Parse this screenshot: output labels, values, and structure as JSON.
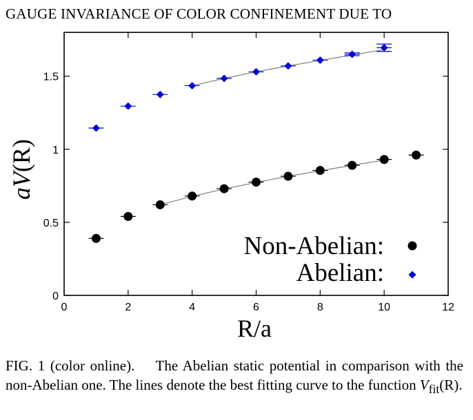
{
  "running_head": "GAUGE INVARIANCE OF COLOR CONFINEMENT DUE TO",
  "caption": {
    "prefix": "FIG. 1 (color online).",
    "text": "The Abelian static potential in comparison with the non-Abelian one. The lines denote the best fitting curve to the function",
    "function_name": "V",
    "function_sub": "fit",
    "function_arg": "(R)."
  },
  "chart_data": {
    "type": "scatter",
    "xlabel": "R/a",
    "ylabel_italic": "aV",
    "ylabel_rest": "(R)",
    "xlim": [
      0,
      12
    ],
    "ylim": [
      0,
      1.8
    ],
    "xticks": [
      0,
      2,
      4,
      6,
      8,
      10,
      12
    ],
    "yticks": [
      0,
      0.5,
      1,
      1.5
    ],
    "ytick_labels": [
      "0",
      "0.5",
      "1",
      "1.5"
    ],
    "grid": false,
    "legend_position": "bottom-right",
    "series": [
      {
        "name": "Non-Abelian:",
        "marker": "circle",
        "color": "#000000",
        "x": [
          1,
          2,
          3,
          4,
          5,
          6,
          7,
          8,
          9,
          10,
          11
        ],
        "y": [
          0.39,
          0.54,
          0.62,
          0.68,
          0.73,
          0.775,
          0.815,
          0.855,
          0.89,
          0.93,
          0.96
        ],
        "yerr": [
          0.004,
          0.004,
          0.004,
          0.005,
          0.005,
          0.005,
          0.006,
          0.006,
          0.007,
          0.008,
          0.009
        ],
        "fit": {
          "from": 3,
          "to": 10,
          "y": [
            0.62,
            0.678,
            0.728,
            0.773,
            0.815,
            0.853,
            0.89,
            0.926
          ]
        }
      },
      {
        "name": "Abelian:",
        "marker": "diamond",
        "color": "#0000dd",
        "x": [
          1,
          2,
          3,
          4,
          5,
          6,
          7,
          8,
          9,
          10
        ],
        "y": [
          1.145,
          1.295,
          1.375,
          1.435,
          1.485,
          1.53,
          1.57,
          1.61,
          1.65,
          1.695
        ],
        "yerr": [
          0.004,
          0.004,
          0.005,
          0.005,
          0.006,
          0.006,
          0.007,
          0.008,
          0.01,
          0.025
        ],
        "fit": {
          "from": 4,
          "to": 10,
          "y": [
            1.435,
            1.485,
            1.53,
            1.57,
            1.608,
            1.645,
            1.682
          ]
        }
      }
    ]
  },
  "colors": {
    "fit_line": "#888888",
    "frame": "#000000"
  }
}
